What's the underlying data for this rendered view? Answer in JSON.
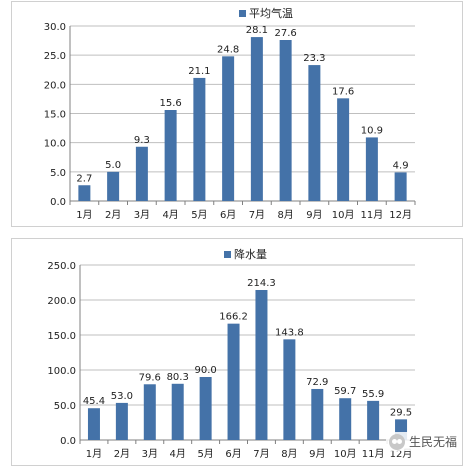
{
  "chart_data": [
    {
      "type": "bar",
      "series": [
        {
          "name": "平均气温",
          "values": [
            2.7,
            5.0,
            9.3,
            15.6,
            21.1,
            24.8,
            28.1,
            27.6,
            23.3,
            17.6,
            10.9,
            4.9
          ]
        }
      ],
      "value_labels": [
        "2.7",
        "5.0",
        "9.3",
        "15.6",
        "21.1",
        "24.8",
        "28.1",
        "27.6",
        "23.3",
        "17.6",
        "10.9",
        "4.9"
      ],
      "categories": [
        "1月",
        "2月",
        "3月",
        "4月",
        "5月",
        "6月",
        "7月",
        "8月",
        "9月",
        "10月",
        "11月",
        "12月"
      ],
      "ylim": [
        0,
        30
      ],
      "yticks": [
        "0.0",
        "5.0",
        "10.0",
        "15.0",
        "20.0",
        "25.0",
        "30.0"
      ],
      "grid": true,
      "legend_position": "top-center",
      "color": "#4472a8"
    },
    {
      "type": "bar",
      "series": [
        {
          "name": "降水量",
          "values": [
            45.4,
            53.0,
            79.6,
            80.3,
            90.0,
            166.2,
            214.3,
            143.8,
            72.9,
            59.7,
            55.9,
            29.5
          ]
        }
      ],
      "value_labels": [
        "45.4",
        "53.0",
        "79.6",
        "80.3",
        "90.0",
        "166.2",
        "214.3",
        "143.8",
        "72.9",
        "59.7",
        "55.9",
        "29.5"
      ],
      "categories": [
        "1月",
        "2月",
        "3月",
        "4月",
        "5月",
        "6月",
        "7月",
        "8月",
        "9月",
        "10月",
        "11月",
        "12月"
      ],
      "ylim": [
        0,
        250
      ],
      "yticks": [
        "0.0",
        "50.0",
        "100.0",
        "150.0",
        "200.0",
        "250.0"
      ],
      "grid": true,
      "legend_position": "top-left",
      "color": "#4472a8"
    }
  ],
  "watermark": {
    "text": "生民无福",
    "icon": "wechat-icon"
  }
}
